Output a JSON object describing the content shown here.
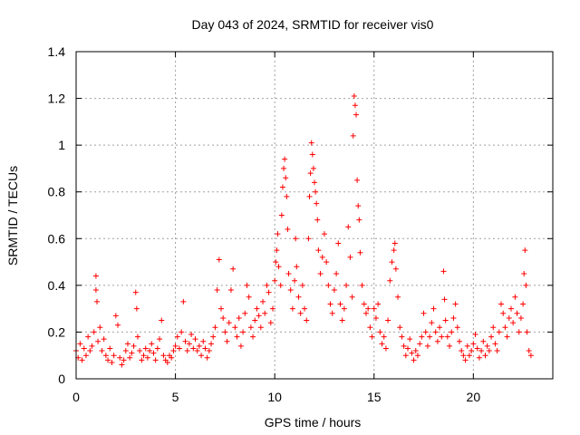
{
  "chart_data": {
    "type": "scatter",
    "title": "Day 043 of 2024, SRMTID for receiver vis0",
    "xlabel": "GPS time / hours",
    "ylabel": "SRMTID / TECUs",
    "xlim": [
      0,
      24
    ],
    "ylim": [
      0,
      1.4
    ],
    "xticks": [
      0,
      5,
      10,
      15,
      20
    ],
    "xtick_labels": [
      "0",
      "5",
      "10",
      "15",
      "20"
    ],
    "yticks": [
      0,
      0.2,
      0.4,
      0.6,
      0.8,
      1.0,
      1.2,
      1.4
    ],
    "ytick_labels": [
      "0",
      "0.2",
      "0.4",
      "0.6",
      "0.8",
      "1",
      "1.2",
      "1.4"
    ],
    "grid": true,
    "marker": "+",
    "color": "#ff0000",
    "series": [
      {
        "name": "vis0",
        "points": [
          [
            0.0,
            0.12
          ],
          [
            0.1,
            0.09
          ],
          [
            0.2,
            0.15
          ],
          [
            0.3,
            0.08
          ],
          [
            0.4,
            0.13
          ],
          [
            0.5,
            0.1
          ],
          [
            0.6,
            0.18
          ],
          [
            0.7,
            0.12
          ],
          [
            0.8,
            0.14
          ],
          [
            0.9,
            0.2
          ],
          [
            1.0,
            0.44
          ],
          [
            1.0,
            0.38
          ],
          [
            1.05,
            0.33
          ],
          [
            1.1,
            0.16
          ],
          [
            1.2,
            0.22
          ],
          [
            1.3,
            0.12
          ],
          [
            1.4,
            0.17
          ],
          [
            1.5,
            0.1
          ],
          [
            1.6,
            0.08
          ],
          [
            1.7,
            0.13
          ],
          [
            1.8,
            0.07
          ],
          [
            1.9,
            0.1
          ],
          [
            2.0,
            0.27
          ],
          [
            2.1,
            0.23
          ],
          [
            2.2,
            0.09
          ],
          [
            2.3,
            0.06
          ],
          [
            2.4,
            0.08
          ],
          [
            2.5,
            0.12
          ],
          [
            2.6,
            0.15
          ],
          [
            2.7,
            0.09
          ],
          [
            2.8,
            0.11
          ],
          [
            2.9,
            0.14
          ],
          [
            3.0,
            0.37
          ],
          [
            3.05,
            0.3
          ],
          [
            3.1,
            0.18
          ],
          [
            3.2,
            0.12
          ],
          [
            3.3,
            0.08
          ],
          [
            3.4,
            0.1
          ],
          [
            3.5,
            0.13
          ],
          [
            3.6,
            0.09
          ],
          [
            3.7,
            0.12
          ],
          [
            3.8,
            0.15
          ],
          [
            3.9,
            0.11
          ],
          [
            4.0,
            0.08
          ],
          [
            4.1,
            0.13
          ],
          [
            4.2,
            0.17
          ],
          [
            4.3,
            0.25
          ],
          [
            4.4,
            0.1
          ],
          [
            4.5,
            0.08
          ],
          [
            4.6,
            0.07
          ],
          [
            4.7,
            0.1
          ],
          [
            4.8,
            0.09
          ],
          [
            4.9,
            0.12
          ],
          [
            5.0,
            0.14
          ],
          [
            5.1,
            0.18
          ],
          [
            5.2,
            0.13
          ],
          [
            5.3,
            0.2
          ],
          [
            5.4,
            0.33
          ],
          [
            5.5,
            0.16
          ],
          [
            5.6,
            0.12
          ],
          [
            5.7,
            0.15
          ],
          [
            5.8,
            0.19
          ],
          [
            5.9,
            0.13
          ],
          [
            6.0,
            0.17
          ],
          [
            6.1,
            0.12
          ],
          [
            6.2,
            0.14
          ],
          [
            6.3,
            0.1
          ],
          [
            6.4,
            0.16
          ],
          [
            6.5,
            0.13
          ],
          [
            6.6,
            0.09
          ],
          [
            6.7,
            0.12
          ],
          [
            6.8,
            0.15
          ],
          [
            6.9,
            0.18
          ],
          [
            7.0,
            0.22
          ],
          [
            7.1,
            0.38
          ],
          [
            7.2,
            0.51
          ],
          [
            7.3,
            0.3
          ],
          [
            7.4,
            0.26
          ],
          [
            7.5,
            0.2
          ],
          [
            7.6,
            0.16
          ],
          [
            7.7,
            0.24
          ],
          [
            7.8,
            0.38
          ],
          [
            7.9,
            0.47
          ],
          [
            8.0,
            0.22
          ],
          [
            8.1,
            0.18
          ],
          [
            8.2,
            0.26
          ],
          [
            8.3,
            0.14
          ],
          [
            8.4,
            0.2
          ],
          [
            8.5,
            0.28
          ],
          [
            8.6,
            0.4
          ],
          [
            8.7,
            0.35
          ],
          [
            8.8,
            0.22
          ],
          [
            8.9,
            0.18
          ],
          [
            9.0,
            0.25
          ],
          [
            9.1,
            0.3
          ],
          [
            9.2,
            0.27
          ],
          [
            9.3,
            0.22
          ],
          [
            9.4,
            0.33
          ],
          [
            9.5,
            0.28
          ],
          [
            9.6,
            0.4
          ],
          [
            9.7,
            0.37
          ],
          [
            9.8,
            0.24
          ],
          [
            9.9,
            0.3
          ],
          [
            10.0,
            0.42
          ],
          [
            10.05,
            0.5
          ],
          [
            10.1,
            0.55
          ],
          [
            10.15,
            0.62
          ],
          [
            10.2,
            0.48
          ],
          [
            10.3,
            0.4
          ],
          [
            10.35,
            0.7
          ],
          [
            10.4,
            0.82
          ],
          [
            10.45,
            0.9
          ],
          [
            10.5,
            0.94
          ],
          [
            10.55,
            0.86
          ],
          [
            10.6,
            0.78
          ],
          [
            10.65,
            0.64
          ],
          [
            10.7,
            0.45
          ],
          [
            10.8,
            0.38
          ],
          [
            10.9,
            0.3
          ],
          [
            11.0,
            0.42
          ],
          [
            11.05,
            0.6
          ],
          [
            11.1,
            0.48
          ],
          [
            11.2,
            0.35
          ],
          [
            11.3,
            0.28
          ],
          [
            11.4,
            0.4
          ],
          [
            11.5,
            0.3
          ],
          [
            11.6,
            0.25
          ],
          [
            11.7,
            0.6
          ],
          [
            11.75,
            0.78
          ],
          [
            11.8,
            0.88
          ],
          [
            11.85,
            1.01
          ],
          [
            11.9,
            0.96
          ],
          [
            11.95,
            0.9
          ],
          [
            12.0,
            0.84
          ],
          [
            12.05,
            0.8
          ],
          [
            12.1,
            0.75
          ],
          [
            12.15,
            0.68
          ],
          [
            12.2,
            0.55
          ],
          [
            12.3,
            0.45
          ],
          [
            12.4,
            0.52
          ],
          [
            12.5,
            0.62
          ],
          [
            12.6,
            0.5
          ],
          [
            12.7,
            0.4
          ],
          [
            12.8,
            0.32
          ],
          [
            12.9,
            0.28
          ],
          [
            13.0,
            0.38
          ],
          [
            13.1,
            0.45
          ],
          [
            13.2,
            0.58
          ],
          [
            13.3,
            0.32
          ],
          [
            13.4,
            0.25
          ],
          [
            13.5,
            0.3
          ],
          [
            13.6,
            0.4
          ],
          [
            13.7,
            0.65
          ],
          [
            13.8,
            0.52
          ],
          [
            13.9,
            0.35
          ],
          [
            13.95,
            1.04
          ],
          [
            14.0,
            1.21
          ],
          [
            14.05,
            1.17
          ],
          [
            14.1,
            1.13
          ],
          [
            14.15,
            0.85
          ],
          [
            14.2,
            0.74
          ],
          [
            14.25,
            0.68
          ],
          [
            14.3,
            0.54
          ],
          [
            14.4,
            0.4
          ],
          [
            14.5,
            0.32
          ],
          [
            14.6,
            0.28
          ],
          [
            14.7,
            0.3
          ],
          [
            14.8,
            0.22
          ],
          [
            14.9,
            0.18
          ],
          [
            15.0,
            0.3
          ],
          [
            15.1,
            0.26
          ],
          [
            15.2,
            0.32
          ],
          [
            15.3,
            0.2
          ],
          [
            15.4,
            0.15
          ],
          [
            15.5,
            0.18
          ],
          [
            15.6,
            0.13
          ],
          [
            15.7,
            0.25
          ],
          [
            15.8,
            0.42
          ],
          [
            15.9,
            0.5
          ],
          [
            16.0,
            0.55
          ],
          [
            16.05,
            0.58
          ],
          [
            16.1,
            0.47
          ],
          [
            16.2,
            0.35
          ],
          [
            16.3,
            0.22
          ],
          [
            16.4,
            0.18
          ],
          [
            16.5,
            0.14
          ],
          [
            16.6,
            0.1
          ],
          [
            16.7,
            0.13
          ],
          [
            16.8,
            0.17
          ],
          [
            16.9,
            0.11
          ],
          [
            17.0,
            0.08
          ],
          [
            17.1,
            0.12
          ],
          [
            17.2,
            0.1
          ],
          [
            17.3,
            0.15
          ],
          [
            17.4,
            0.18
          ],
          [
            17.5,
            0.28
          ],
          [
            17.6,
            0.2
          ],
          [
            17.7,
            0.14
          ],
          [
            17.8,
            0.18
          ],
          [
            17.9,
            0.24
          ],
          [
            18.0,
            0.3
          ],
          [
            18.1,
            0.2
          ],
          [
            18.2,
            0.16
          ],
          [
            18.3,
            0.22
          ],
          [
            18.4,
            0.18
          ],
          [
            18.5,
            0.46
          ],
          [
            18.55,
            0.34
          ],
          [
            18.6,
            0.25
          ],
          [
            18.7,
            0.18
          ],
          [
            18.8,
            0.14
          ],
          [
            18.9,
            0.2
          ],
          [
            19.0,
            0.26
          ],
          [
            19.1,
            0.32
          ],
          [
            19.2,
            0.22
          ],
          [
            19.3,
            0.16
          ],
          [
            19.4,
            0.12
          ],
          [
            19.5,
            0.1
          ],
          [
            19.6,
            0.08
          ],
          [
            19.7,
            0.14
          ],
          [
            19.8,
            0.1
          ],
          [
            19.9,
            0.12
          ],
          [
            20.0,
            0.15
          ],
          [
            20.1,
            0.19
          ],
          [
            20.2,
            0.13
          ],
          [
            20.3,
            0.09
          ],
          [
            20.4,
            0.12
          ],
          [
            20.5,
            0.16
          ],
          [
            20.6,
            0.1
          ],
          [
            20.7,
            0.14
          ],
          [
            20.8,
            0.12
          ],
          [
            20.9,
            0.18
          ],
          [
            21.0,
            0.22
          ],
          [
            21.1,
            0.15
          ],
          [
            21.2,
            0.12
          ],
          [
            21.3,
            0.2
          ],
          [
            21.4,
            0.32
          ],
          [
            21.5,
            0.28
          ],
          [
            21.6,
            0.22
          ],
          [
            21.7,
            0.18
          ],
          [
            21.8,
            0.26
          ],
          [
            21.9,
            0.3
          ],
          [
            22.0,
            0.24
          ],
          [
            22.1,
            0.35
          ],
          [
            22.2,
            0.28
          ],
          [
            22.3,
            0.2
          ],
          [
            22.4,
            0.26
          ],
          [
            22.5,
            0.32
          ],
          [
            22.55,
            0.45
          ],
          [
            22.6,
            0.55
          ],
          [
            22.65,
            0.4
          ],
          [
            22.7,
            0.2
          ],
          [
            22.8,
            0.12
          ],
          [
            22.9,
            0.1
          ]
        ]
      }
    ]
  }
}
